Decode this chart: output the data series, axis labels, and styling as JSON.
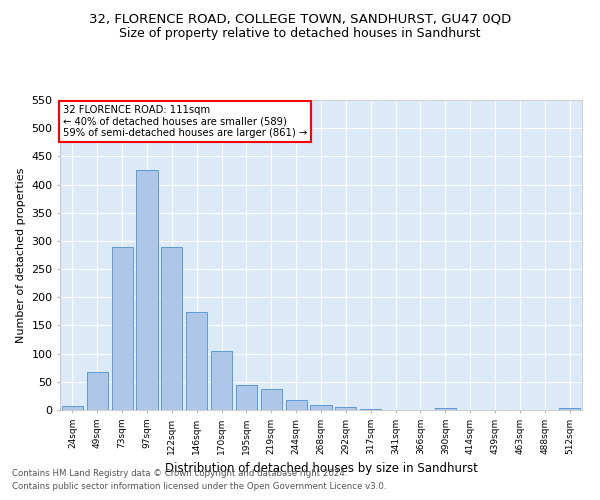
{
  "title": "32, FLORENCE ROAD, COLLEGE TOWN, SANDHURST, GU47 0QD",
  "subtitle": "Size of property relative to detached houses in Sandhurst",
  "xlabel": "Distribution of detached houses by size in Sandhurst",
  "ylabel": "Number of detached properties",
  "footnote1": "Contains HM Land Registry data © Crown copyright and database right 2024.",
  "footnote2": "Contains public sector information licensed under the Open Government Licence v3.0.",
  "annotation_line1": "32 FLORENCE ROAD: 111sqm",
  "annotation_line2": "← 40% of detached houses are smaller (589)",
  "annotation_line3": "59% of semi-detached houses are larger (861) →",
  "bar_labels": [
    "24sqm",
    "49sqm",
    "73sqm",
    "97sqm",
    "122sqm",
    "146sqm",
    "170sqm",
    "195sqm",
    "219sqm",
    "244sqm",
    "268sqm",
    "292sqm",
    "317sqm",
    "341sqm",
    "366sqm",
    "390sqm",
    "414sqm",
    "439sqm",
    "463sqm",
    "488sqm",
    "512sqm"
  ],
  "bar_values": [
    7,
    68,
    290,
    425,
    290,
    173,
    105,
    44,
    37,
    17,
    9,
    5,
    2,
    0,
    0,
    3,
    0,
    0,
    0,
    0,
    3
  ],
  "bar_color": "#aec6e8",
  "bar_edge_color": "#5b9bd5",
  "ylim": [
    0,
    550
  ],
  "yticks": [
    0,
    50,
    100,
    150,
    200,
    250,
    300,
    350,
    400,
    450,
    500,
    550
  ],
  "bg_color": "#dce9f7",
  "annotation_box_color": "white",
  "annotation_box_edge_color": "red",
  "title_fontsize": 9.5,
  "subtitle_fontsize": 9
}
